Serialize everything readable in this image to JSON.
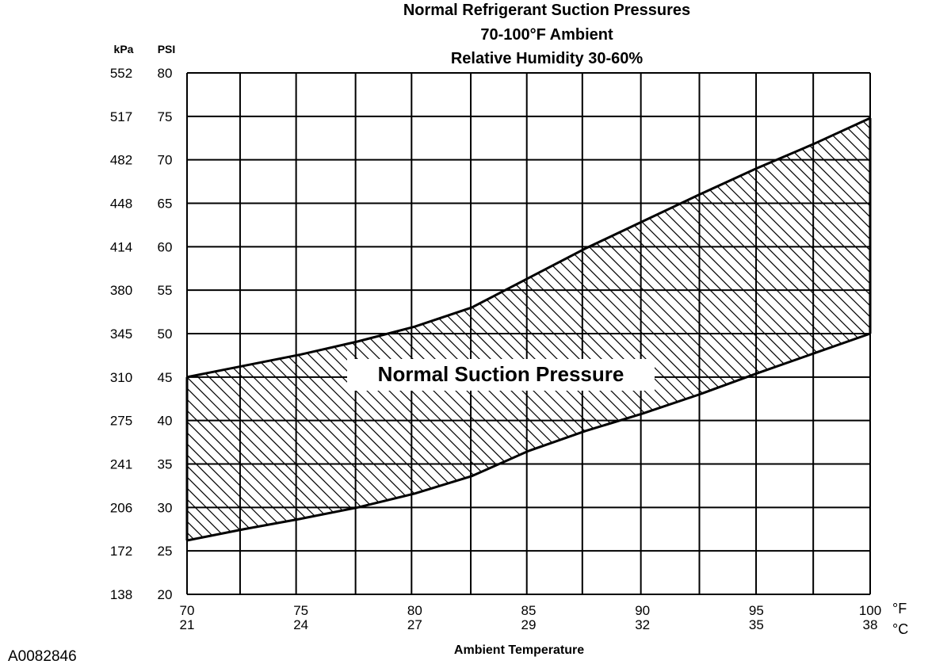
{
  "reference_id": "A0082846",
  "colors": {
    "ink": "#000000",
    "background": "#ffffff"
  },
  "chart_data": {
    "type": "area",
    "title": [
      "Normal  Refrigerant  Suction  Pressures",
      "70-100°F Ambient",
      "Relative Humidity 30-60%"
    ],
    "xlabel": "Ambient Temperature",
    "x_unit_primary": "°F",
    "x_unit_secondary": "°C",
    "y_unit_primary": "PSI",
    "y_unit_secondary": "kPa",
    "xlim": [
      70,
      100
    ],
    "ylim": [
      20,
      80
    ],
    "x_ticks": [
      {
        "f": "70",
        "c": "21",
        "x": 70
      },
      {
        "f": "75",
        "c": "24",
        "x": 75
      },
      {
        "f": "80",
        "c": "27",
        "x": 80
      },
      {
        "f": "85",
        "c": "29",
        "x": 85
      },
      {
        "f": "90",
        "c": "32",
        "x": 90
      },
      {
        "f": "95",
        "c": "35",
        "x": 95
      },
      {
        "f": "100",
        "c": "38",
        "x": 100
      }
    ],
    "x_grid": [
      70,
      72.33,
      74.79,
      77.4,
      79.86,
      82.46,
      84.92,
      87.36,
      89.93,
      92.5,
      94.99,
      97.5,
      100
    ],
    "y_ticks": [
      {
        "psi": "80",
        "kpa": "552",
        "y": 80
      },
      {
        "psi": "75",
        "kpa": "517",
        "y": 75
      },
      {
        "psi": "70",
        "kpa": "482",
        "y": 70
      },
      {
        "psi": "65",
        "kpa": "448",
        "y": 65
      },
      {
        "psi": "60",
        "kpa": "414",
        "y": 60
      },
      {
        "psi": "55",
        "kpa": "380",
        "y": 55
      },
      {
        "psi": "50",
        "kpa": "345",
        "y": 50
      },
      {
        "psi": "45",
        "kpa": "310",
        "y": 45
      },
      {
        "psi": "40",
        "kpa": "275",
        "y": 40
      },
      {
        "psi": "35",
        "kpa": "241",
        "y": 35
      },
      {
        "psi": "30",
        "kpa": "206",
        "y": 30
      },
      {
        "psi": "25",
        "kpa": "172",
        "y": 25
      },
      {
        "psi": "20",
        "kpa": "138",
        "y": 20
      }
    ],
    "series": [
      {
        "name": "Normal Suction Pressure",
        "upper": {
          "x": [
            70,
            72.5,
            75,
            77.5,
            80,
            82.5,
            85,
            87.5,
            90,
            92.5,
            95,
            97.5,
            100
          ],
          "y": [
            45,
            46.3,
            47.6,
            49.1,
            50.8,
            53.0,
            56.4,
            59.8,
            62.9,
            66.0,
            69.0,
            71.8,
            74.8
          ]
        },
        "lower": {
          "x": [
            70,
            72.5,
            75,
            77.5,
            80,
            82.5,
            85,
            87.5,
            90,
            92.5,
            95,
            97.5,
            100
          ],
          "y": [
            26.2,
            27.5,
            28.7,
            30.0,
            31.6,
            33.6,
            36.5,
            38.8,
            40.8,
            43.0,
            45.4,
            47.7,
            50.0
          ]
        }
      }
    ],
    "grid": true,
    "hatch": "diagonal"
  }
}
